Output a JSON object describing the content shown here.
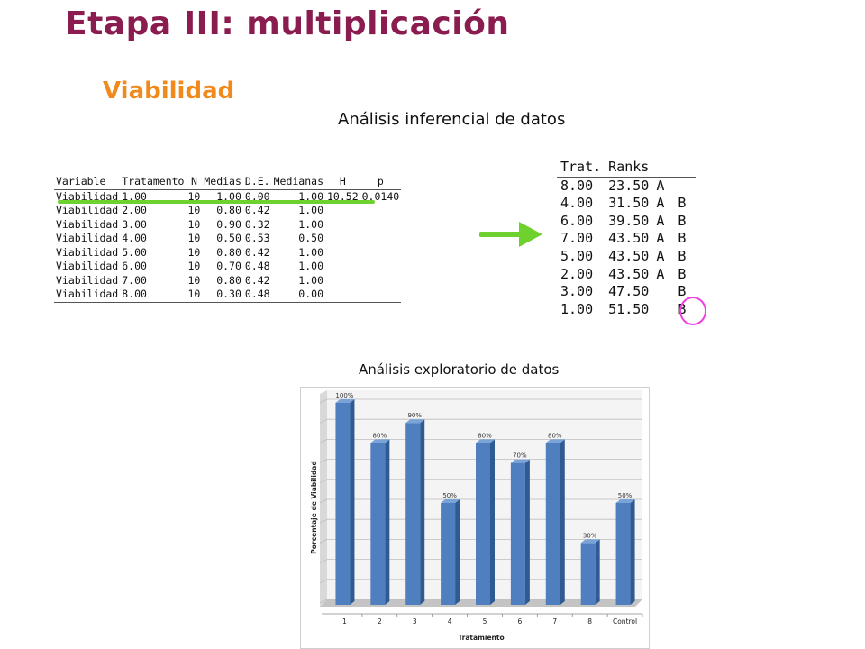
{
  "slide": {
    "title": "Etapa III: multiplicación",
    "subtitle": "Viabilidad",
    "inferential_heading": "Análisis inferencial de datos",
    "exploratory_heading": "Análisis exploratorio de datos",
    "colors": {
      "title": "#8a1c4f",
      "subtitle": "#f08a1c",
      "highlight": "#6fd12d",
      "arrow": "#6fd12d",
      "circle": "#ee3fe0",
      "bar": "#4f7fbf"
    }
  },
  "stats_table": {
    "headers": [
      "Variable",
      "Tratamento",
      "N",
      "Medias",
      "D.E.",
      "Medianas",
      "H",
      "p"
    ],
    "rows": [
      [
        "Viabilidad",
        "1.00",
        "10",
        "1.00",
        "0.00",
        "1.00",
        "10.52",
        "0.0140"
      ],
      [
        "Viabilidad",
        "2.00",
        "10",
        "0.80",
        "0.42",
        "1.00",
        "",
        ""
      ],
      [
        "Viabilidad",
        "3.00",
        "10",
        "0.90",
        "0.32",
        "1.00",
        "",
        ""
      ],
      [
        "Viabilidad",
        "4.00",
        "10",
        "0.50",
        "0.53",
        "0.50",
        "",
        ""
      ],
      [
        "Viabilidad",
        "5.00",
        "10",
        "0.80",
        "0.42",
        "1.00",
        "",
        ""
      ],
      [
        "Viabilidad",
        "6.00",
        "10",
        "0.70",
        "0.48",
        "1.00",
        "",
        ""
      ],
      [
        "Viabilidad",
        "7.00",
        "10",
        "0.80",
        "0.42",
        "1.00",
        "",
        ""
      ],
      [
        "Viabilidad",
        "8.00",
        "10",
        "0.30",
        "0.48",
        "0.00",
        "",
        ""
      ]
    ]
  },
  "ranks_table": {
    "headers": [
      "Trat.",
      "Ranks"
    ],
    "rows": [
      [
        "8.00",
        "23.50",
        "A",
        ""
      ],
      [
        "4.00",
        "31.50",
        "A",
        "B"
      ],
      [
        "6.00",
        "39.50",
        "A",
        "B"
      ],
      [
        "7.00",
        "43.50",
        "A",
        "B"
      ],
      [
        "5.00",
        "43.50",
        "A",
        "B"
      ],
      [
        "2.00",
        "43.50",
        "A",
        "B"
      ],
      [
        "3.00",
        "47.50",
        "",
        "B"
      ],
      [
        "1.00",
        "51.50",
        "",
        "B"
      ]
    ]
  },
  "chart_data": {
    "type": "bar",
    "categories": [
      "1",
      "2",
      "3",
      "4",
      "5",
      "6",
      "7",
      "8",
      "Control"
    ],
    "values": [
      100,
      80,
      90,
      50,
      80,
      70,
      80,
      30,
      50
    ],
    "data_labels": [
      "100%",
      "80%",
      "90%",
      "50%",
      "80%",
      "70%",
      "80%",
      "30%",
      "50%"
    ],
    "xlabel": "Tratamiento",
    "ylabel": "Porcentaje de Viabilidad",
    "ylim": [
      0,
      100
    ],
    "grid": true,
    "style": "3d"
  }
}
